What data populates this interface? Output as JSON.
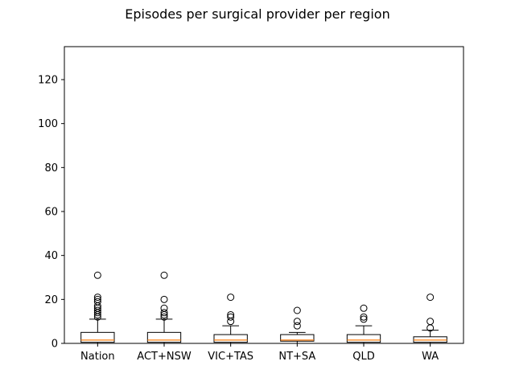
{
  "chart_data": {
    "type": "box",
    "title": "Episodes per surgical provider per region",
    "xlabel": "",
    "ylabel": "",
    "ylim": [
      0,
      135
    ],
    "yticks": [
      0,
      20,
      40,
      60,
      80,
      100,
      120
    ],
    "grid": false,
    "categories": [
      "Nation",
      "ACT+NSW",
      "VIC+TAS",
      "NT+SA",
      "QLD",
      "WA"
    ],
    "boxes": [
      {
        "category": "Nation",
        "whisker_low": 0,
        "q1": 0.5,
        "median": 1.5,
        "q3": 5,
        "whisker_high": 11,
        "outliers": [
          12,
          13,
          14,
          15,
          16,
          17,
          19,
          20,
          21,
          31
        ]
      },
      {
        "category": "ACT+NSW",
        "whisker_low": 0,
        "q1": 0.5,
        "median": 1.5,
        "q3": 5,
        "whisker_high": 11,
        "outliers": [
          12,
          13,
          14,
          16,
          20,
          31
        ]
      },
      {
        "category": "VIC+TAS",
        "whisker_low": 0,
        "q1": 0.5,
        "median": 1.5,
        "q3": 4,
        "whisker_high": 8,
        "outliers": [
          10,
          12,
          13,
          21
        ]
      },
      {
        "category": "NT+SA",
        "whisker_low": 0,
        "q1": 1,
        "median": 1.5,
        "q3": 4,
        "whisker_high": 5,
        "outliers": [
          8,
          10,
          15
        ]
      },
      {
        "category": "QLD",
        "whisker_low": 0,
        "q1": 0.5,
        "median": 1.5,
        "q3": 4,
        "whisker_high": 8,
        "outliers": [
          11,
          12,
          16
        ]
      },
      {
        "category": "WA",
        "whisker_low": 0,
        "q1": 0.5,
        "median": 1.5,
        "q3": 3,
        "whisker_high": 6,
        "outliers": [
          7,
          10,
          21
        ]
      }
    ],
    "colors": {
      "box": "#000000",
      "median": "#ff7f0e",
      "outlier": "#000000"
    }
  }
}
